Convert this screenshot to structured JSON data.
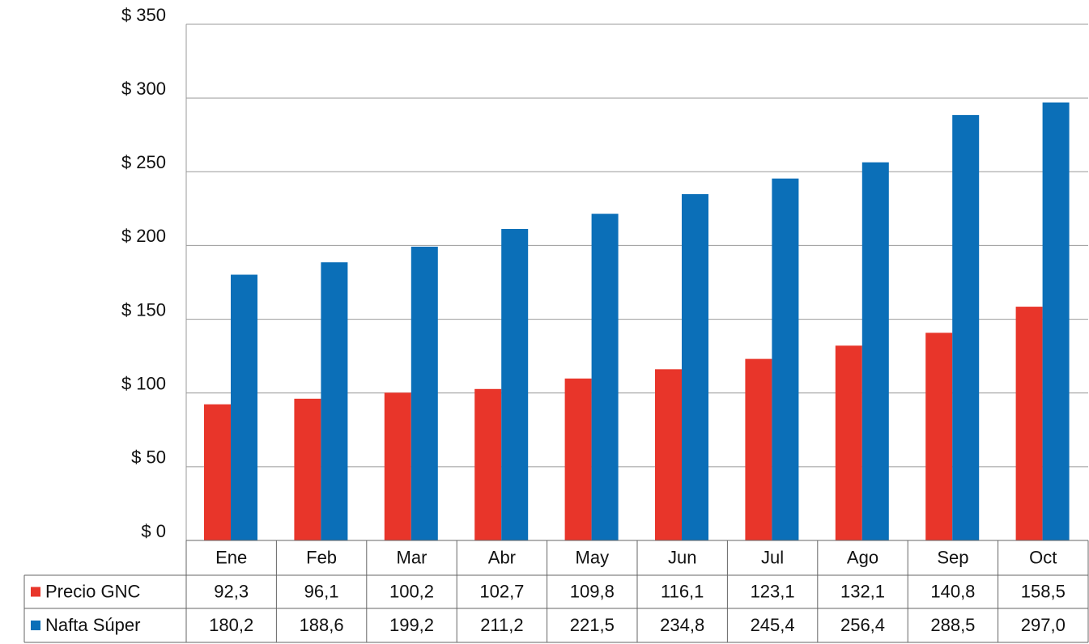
{
  "chart_data": {
    "type": "bar",
    "categories": [
      "Ene",
      "Feb",
      "Mar",
      "Abr",
      "May",
      "Jun",
      "Jul",
      "Ago",
      "Sep",
      "Oct"
    ],
    "series": [
      {
        "name": "Precio GNC",
        "color": "#e8352a",
        "values": [
          92.3,
          96.1,
          100.2,
          102.7,
          109.8,
          116.1,
          123.1,
          132.1,
          140.8,
          158.5
        ],
        "value_labels": [
          "92,3",
          "96,1",
          "100,2",
          "102,7",
          "109,8",
          "116,1",
          "123,1",
          "132,1",
          "140,8",
          "158,5"
        ]
      },
      {
        "name": "Nafta Súper",
        "color": "#0b6fb8",
        "values": [
          180.2,
          188.6,
          199.2,
          211.2,
          221.5,
          234.8,
          245.4,
          256.4,
          288.5,
          297.0
        ],
        "value_labels": [
          "180,2",
          "188,6",
          "199,2",
          "211,2",
          "221,5",
          "234,8",
          "245,4",
          "256,4",
          "288,5",
          "297,0"
        ]
      }
    ],
    "ylim": [
      0,
      350
    ],
    "yticks": [
      {
        "value": 0,
        "label": "$ 0"
      },
      {
        "value": 50,
        "label": "$ 50"
      },
      {
        "value": 100,
        "label": "$ 100"
      },
      {
        "value": 150,
        "label": "$ 150"
      },
      {
        "value": 200,
        "label": "$ 200"
      },
      {
        "value": 250,
        "label": "$ 250"
      },
      {
        "value": 300,
        "label": "$ 300"
      },
      {
        "value": 350,
        "label": "$ 350"
      }
    ],
    "grid": true
  }
}
